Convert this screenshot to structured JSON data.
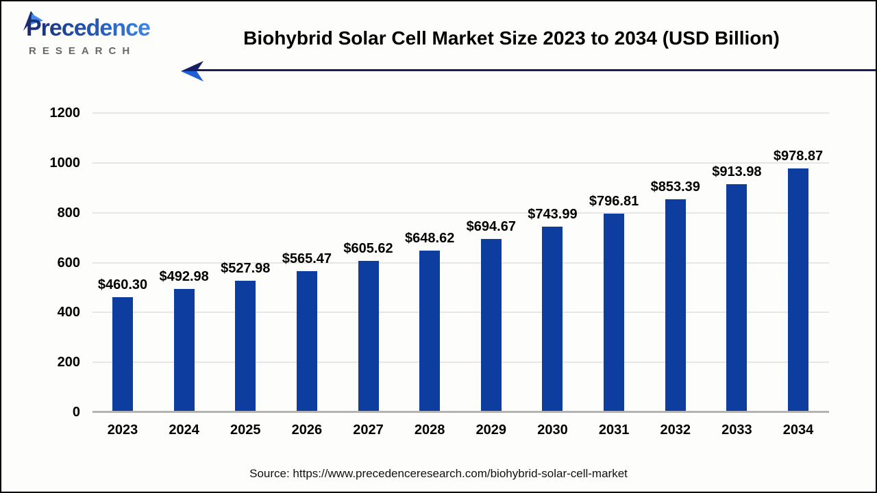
{
  "page": {
    "background": "#fdfdfb",
    "border_color": "#000000"
  },
  "logo": {
    "brand": "Precedence",
    "sub": "RESEARCH",
    "icon": "paper-plane-icon",
    "brand_color_dark": "#1b2a6e",
    "brand_color_light": "#3b86e8",
    "sub_color": "#686868"
  },
  "header": {
    "title": "Biohybrid Solar Cell Market Size 2023 to 2034 (USD Billion)"
  },
  "arrow": {
    "line_color": "#1c1c55",
    "head_top_color": "#151f63",
    "head_bottom_color": "#2160d4"
  },
  "chart_data": {
    "type": "bar",
    "title": "Biohybrid Solar Cell Market Size 2023 to 2034 (USD Billion)",
    "categories": [
      "2023",
      "2024",
      "2025",
      "2026",
      "2027",
      "2028",
      "2029",
      "2030",
      "2031",
      "2032",
      "2033",
      "2034"
    ],
    "values": [
      460.3,
      492.98,
      527.98,
      565.47,
      605.62,
      648.62,
      694.67,
      743.99,
      796.81,
      853.39,
      913.98,
      978.87
    ],
    "labels": [
      "$460.30",
      "$492.98",
      "$527.98",
      "$565.47",
      "$605.62",
      "$648.62",
      "$694.67",
      "$743.99",
      "$796.81",
      "$853.39",
      "$913.98",
      "$978.87"
    ],
    "xlabel": "",
    "ylabel": "",
    "ylim": [
      0,
      1200
    ],
    "yticks": [
      0,
      200,
      400,
      600,
      800,
      1000,
      1200
    ],
    "grid": true,
    "legend_position": "none",
    "bar_color": "#0e3da0",
    "gridline_color": "#e8e6e3",
    "axis_color": "#b3b3b3"
  },
  "footer": {
    "source": "Source: https://www.precedenceresearch.com/biohybrid-solar-cell-market"
  }
}
